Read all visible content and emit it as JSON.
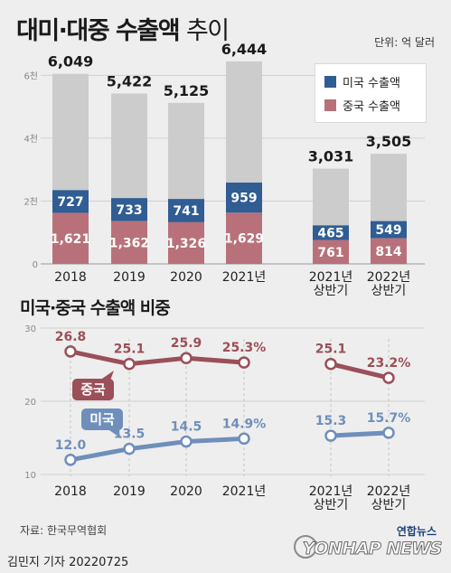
{
  "header": {
    "title_strong": "대미·대중 수출액",
    "title_light": "추이",
    "unit": "단위: 억 달러"
  },
  "legend": {
    "items": [
      {
        "label": "미국 수출액",
        "color": "#2f5d94"
      },
      {
        "label": "중국 수출액",
        "color": "#b8717a"
      }
    ]
  },
  "footer": {
    "source": "자료: 한국무역협회",
    "credit": "김민지 기자  20220725",
    "logo_ko": "연합뉴스",
    "logo_en": "YONHAP NEWS"
  },
  "chart_data": [
    {
      "type": "bar",
      "categories": [
        "2018",
        "2019",
        "2020",
        "2021년",
        "2021년\n상반기",
        "2022년\n상반기"
      ],
      "ylim": [
        0,
        6500
      ],
      "yticks": [
        0,
        2000,
        4000,
        6000
      ],
      "ytick_labels": [
        "0",
        "2천",
        "4천",
        "6천"
      ],
      "totals": [
        6049,
        5422,
        5125,
        6444,
        3031,
        3505
      ],
      "series": [
        {
          "name": "중국 수출액",
          "values": [
            1621,
            1362,
            1326,
            1629,
            761,
            814
          ],
          "color": "#b8717a"
        },
        {
          "name": "미국 수출액",
          "values": [
            727,
            733,
            741,
            959,
            465,
            549
          ],
          "color": "#2f5d94"
        }
      ],
      "rest_color": "#cccccc",
      "grid": true
    },
    {
      "type": "line",
      "title": "미국·중국 수출액 비중",
      "categories": [
        "2018",
        "2019",
        "2020",
        "2021년",
        "2021년\n상반기",
        "2022년\n상반기"
      ],
      "ylim": [
        10,
        30
      ],
      "yticks": [
        10,
        20,
        30
      ],
      "ytick_labels": [
        "10",
        "20",
        "30"
      ],
      "series": [
        {
          "name": "중국",
          "values": [
            26.8,
            25.1,
            25.9,
            25.3,
            25.1,
            23.2
          ],
          "labels": [
            "26.8",
            "25.1",
            "25.9",
            "25.3%",
            "25.1",
            "23.2%"
          ],
          "color": "#9b4f58"
        },
        {
          "name": "미국",
          "values": [
            12.0,
            13.5,
            14.5,
            14.9,
            15.3,
            15.7
          ],
          "labels": [
            "12.0",
            "13.5",
            "14.5",
            "14.9%",
            "15.3",
            "15.7%"
          ],
          "color": "#6f8fba"
        }
      ],
      "segments": [
        [
          0,
          3
        ],
        [
          4,
          5
        ]
      ],
      "grid": true
    }
  ]
}
